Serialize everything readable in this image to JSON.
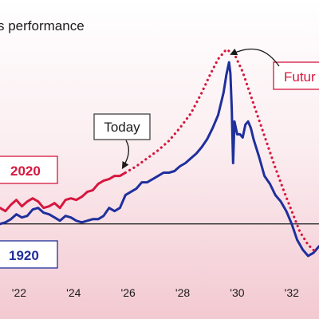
{
  "colors": {
    "series_2020": "#d6173f",
    "series_1920": "#1f2f9c",
    "baseline": "#1b1b1b",
    "today_box_border": "#333333",
    "future_box_border": "#d6173f",
    "background_top": "#ffffff",
    "background_bottom": "#f3c9d1"
  },
  "chart_data": {
    "type": "line",
    "title": "s performance",
    "x_tick_labels": [
      "'22",
      "'24",
      "'26",
      "'28",
      "'30",
      "'32"
    ],
    "x_ticks": [
      1922,
      1924,
      1926,
      1928,
      1930,
      1932
    ],
    "xlim": [
      1921.3,
      1933.0
    ],
    "ylim": [
      -3.2,
      11.0
    ],
    "baseline_value": 0,
    "series": [
      {
        "name": "1920",
        "style": "solid",
        "color": "#1f2f9c",
        "x": [
          1921.3,
          1921.5,
          1921.7,
          1921.9,
          1922.1,
          1922.3,
          1922.5,
          1922.7,
          1922.9,
          1923.1,
          1923.3,
          1923.5,
          1923.7,
          1923.9,
          1924.1,
          1924.3,
          1924.5,
          1924.7,
          1924.9,
          1925.1,
          1925.3,
          1925.5,
          1925.7,
          1925.9,
          1926.1,
          1926.3,
          1926.5,
          1926.7,
          1926.9,
          1927.1,
          1927.3,
          1927.5,
          1927.7,
          1927.9,
          1928.1,
          1928.3,
          1928.5,
          1928.7,
          1928.9,
          1929.1,
          1929.3,
          1929.5,
          1929.6,
          1929.7,
          1929.75,
          1929.8,
          1929.85,
          1929.9,
          1930.0,
          1930.1,
          1930.2,
          1930.3,
          1930.4,
          1930.5,
          1930.6,
          1930.8,
          1931.0,
          1931.2,
          1931.4,
          1931.6,
          1931.8,
          1932.0,
          1932.2,
          1932.4,
          1932.6,
          1932.8,
          1933.0
        ],
        "y": [
          0.0,
          0.1,
          0.3,
          0.6,
          0.4,
          0.5,
          0.9,
          1.0,
          0.7,
          0.6,
          0.4,
          0.2,
          0.5,
          0.4,
          0.2,
          0.1,
          0.2,
          0.3,
          0.3,
          0.5,
          1.0,
          0.8,
          1.0,
          1.8,
          2.0,
          2.2,
          2.6,
          2.6,
          2.8,
          3.0,
          3.2,
          3.2,
          3.3,
          3.6,
          3.8,
          4.1,
          4.4,
          4.8,
          5.3,
          6.0,
          6.8,
          8.2,
          9.3,
          10.1,
          9.4,
          7.2,
          3.8,
          6.4,
          5.6,
          5.6,
          5.4,
          6.2,
          6.4,
          6.0,
          5.3,
          4.2,
          3.0,
          2.5,
          1.8,
          1.4,
          0.8,
          0.0,
          -1.0,
          -1.6,
          -2.0,
          -1.8,
          -1.4
        ]
      },
      {
        "name": "2020",
        "style": "solid",
        "color": "#d6173f",
        "x": [
          1921.3,
          1921.5,
          1921.7,
          1921.9,
          1922.1,
          1922.3,
          1922.5,
          1922.7,
          1922.9,
          1923.1,
          1923.3,
          1923.5,
          1923.7,
          1923.9,
          1924.1,
          1924.3,
          1924.5,
          1924.7,
          1924.9,
          1925.1,
          1925.3,
          1925.5,
          1925.7,
          1925.9
        ],
        "y": [
          1.0,
          0.8,
          1.2,
          1.5,
          1.1,
          1.4,
          1.6,
          1.4,
          1.0,
          1.1,
          1.3,
          1.0,
          1.5,
          1.6,
          1.5,
          1.7,
          2.0,
          2.1,
          2.5,
          2.7,
          2.8,
          3.0,
          3.0,
          3.2
        ]
      },
      {
        "name": "Future",
        "style": "dotted",
        "color": "#d6173f",
        "x": [
          1925.9,
          1926.3,
          1926.7,
          1927.1,
          1927.5,
          1927.9,
          1928.3,
          1928.7,
          1929.0,
          1929.3,
          1929.6,
          1929.9,
          1930.2,
          1930.5,
          1930.8,
          1931.1,
          1931.4,
          1931.7,
          1932.0,
          1932.3,
          1932.6,
          1932.9
        ],
        "y": [
          3.2,
          3.6,
          4.1,
          4.6,
          5.2,
          6.0,
          6.9,
          8.2,
          9.3,
          10.3,
          10.9,
          10.6,
          9.5,
          8.0,
          6.5,
          5.0,
          3.5,
          2.1,
          0.8,
          -0.5,
          -1.3,
          -1.8
        ]
      }
    ]
  },
  "labels": {
    "today": "Today",
    "future": "Futur",
    "label_2020": "2020",
    "label_1920": "1920"
  },
  "arrow_targets": {
    "today_value": {
      "x": 1925.8,
      "y": 3.3
    },
    "future_value": {
      "x": 1929.6,
      "y": 10.7
    }
  }
}
